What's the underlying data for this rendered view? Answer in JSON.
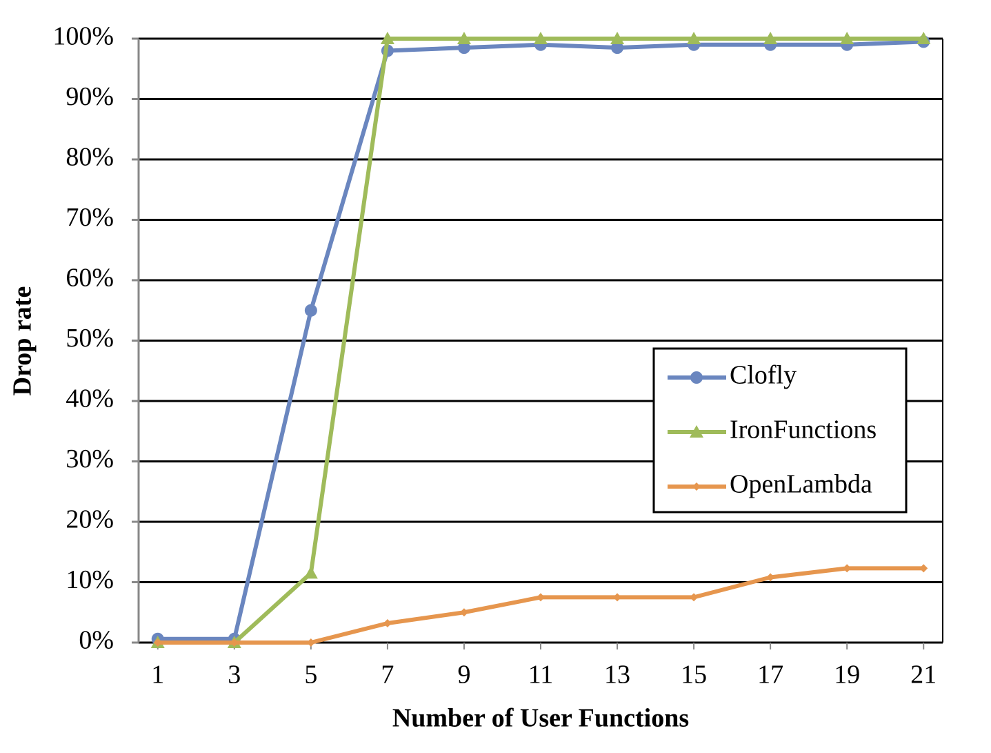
{
  "chart_data": {
    "type": "line",
    "x_label": "Number of User Functions",
    "y_label": "Drop rate",
    "x": [
      1,
      3,
      5,
      7,
      9,
      11,
      13,
      15,
      17,
      19,
      21
    ],
    "xlim": [
      0.5,
      21.5
    ],
    "xticks": [
      1,
      3,
      5,
      7,
      9,
      11,
      13,
      15,
      17,
      19,
      21
    ],
    "ylim": [
      0,
      100
    ],
    "yticks": [
      {
        "value": 0,
        "label": "0%"
      },
      {
        "value": 10,
        "label": "10%"
      },
      {
        "value": 20,
        "label": "20%"
      },
      {
        "value": 30,
        "label": "30%"
      },
      {
        "value": 40,
        "label": "40%"
      },
      {
        "value": 50,
        "label": "50%"
      },
      {
        "value": 60,
        "label": "60%"
      },
      {
        "value": 70,
        "label": "70%"
      },
      {
        "value": 80,
        "label": "80%"
      },
      {
        "value": 90,
        "label": "90%"
      },
      {
        "value": 100,
        "label": "100%"
      }
    ],
    "grid": true,
    "legend": "right",
    "series": [
      {
        "name": "Clofly",
        "color": "#6a86bf",
        "marker": "circle",
        "values": [
          0.6,
          0.6,
          55,
          98,
          98.5,
          99,
          98.5,
          99,
          99,
          99,
          99.5
        ]
      },
      {
        "name": "IronFunctions",
        "color": "#9fbb5a",
        "marker": "triangle",
        "values": [
          0,
          0,
          11.5,
          100,
          100,
          100,
          100,
          100,
          100,
          100,
          100
        ]
      },
      {
        "name": "OpenLambda",
        "color": "#e6964e",
        "marker": "diamond",
        "values": [
          0,
          0,
          0,
          3.2,
          5,
          7.5,
          7.5,
          7.5,
          10.8,
          12.3,
          12.3
        ]
      }
    ]
  }
}
